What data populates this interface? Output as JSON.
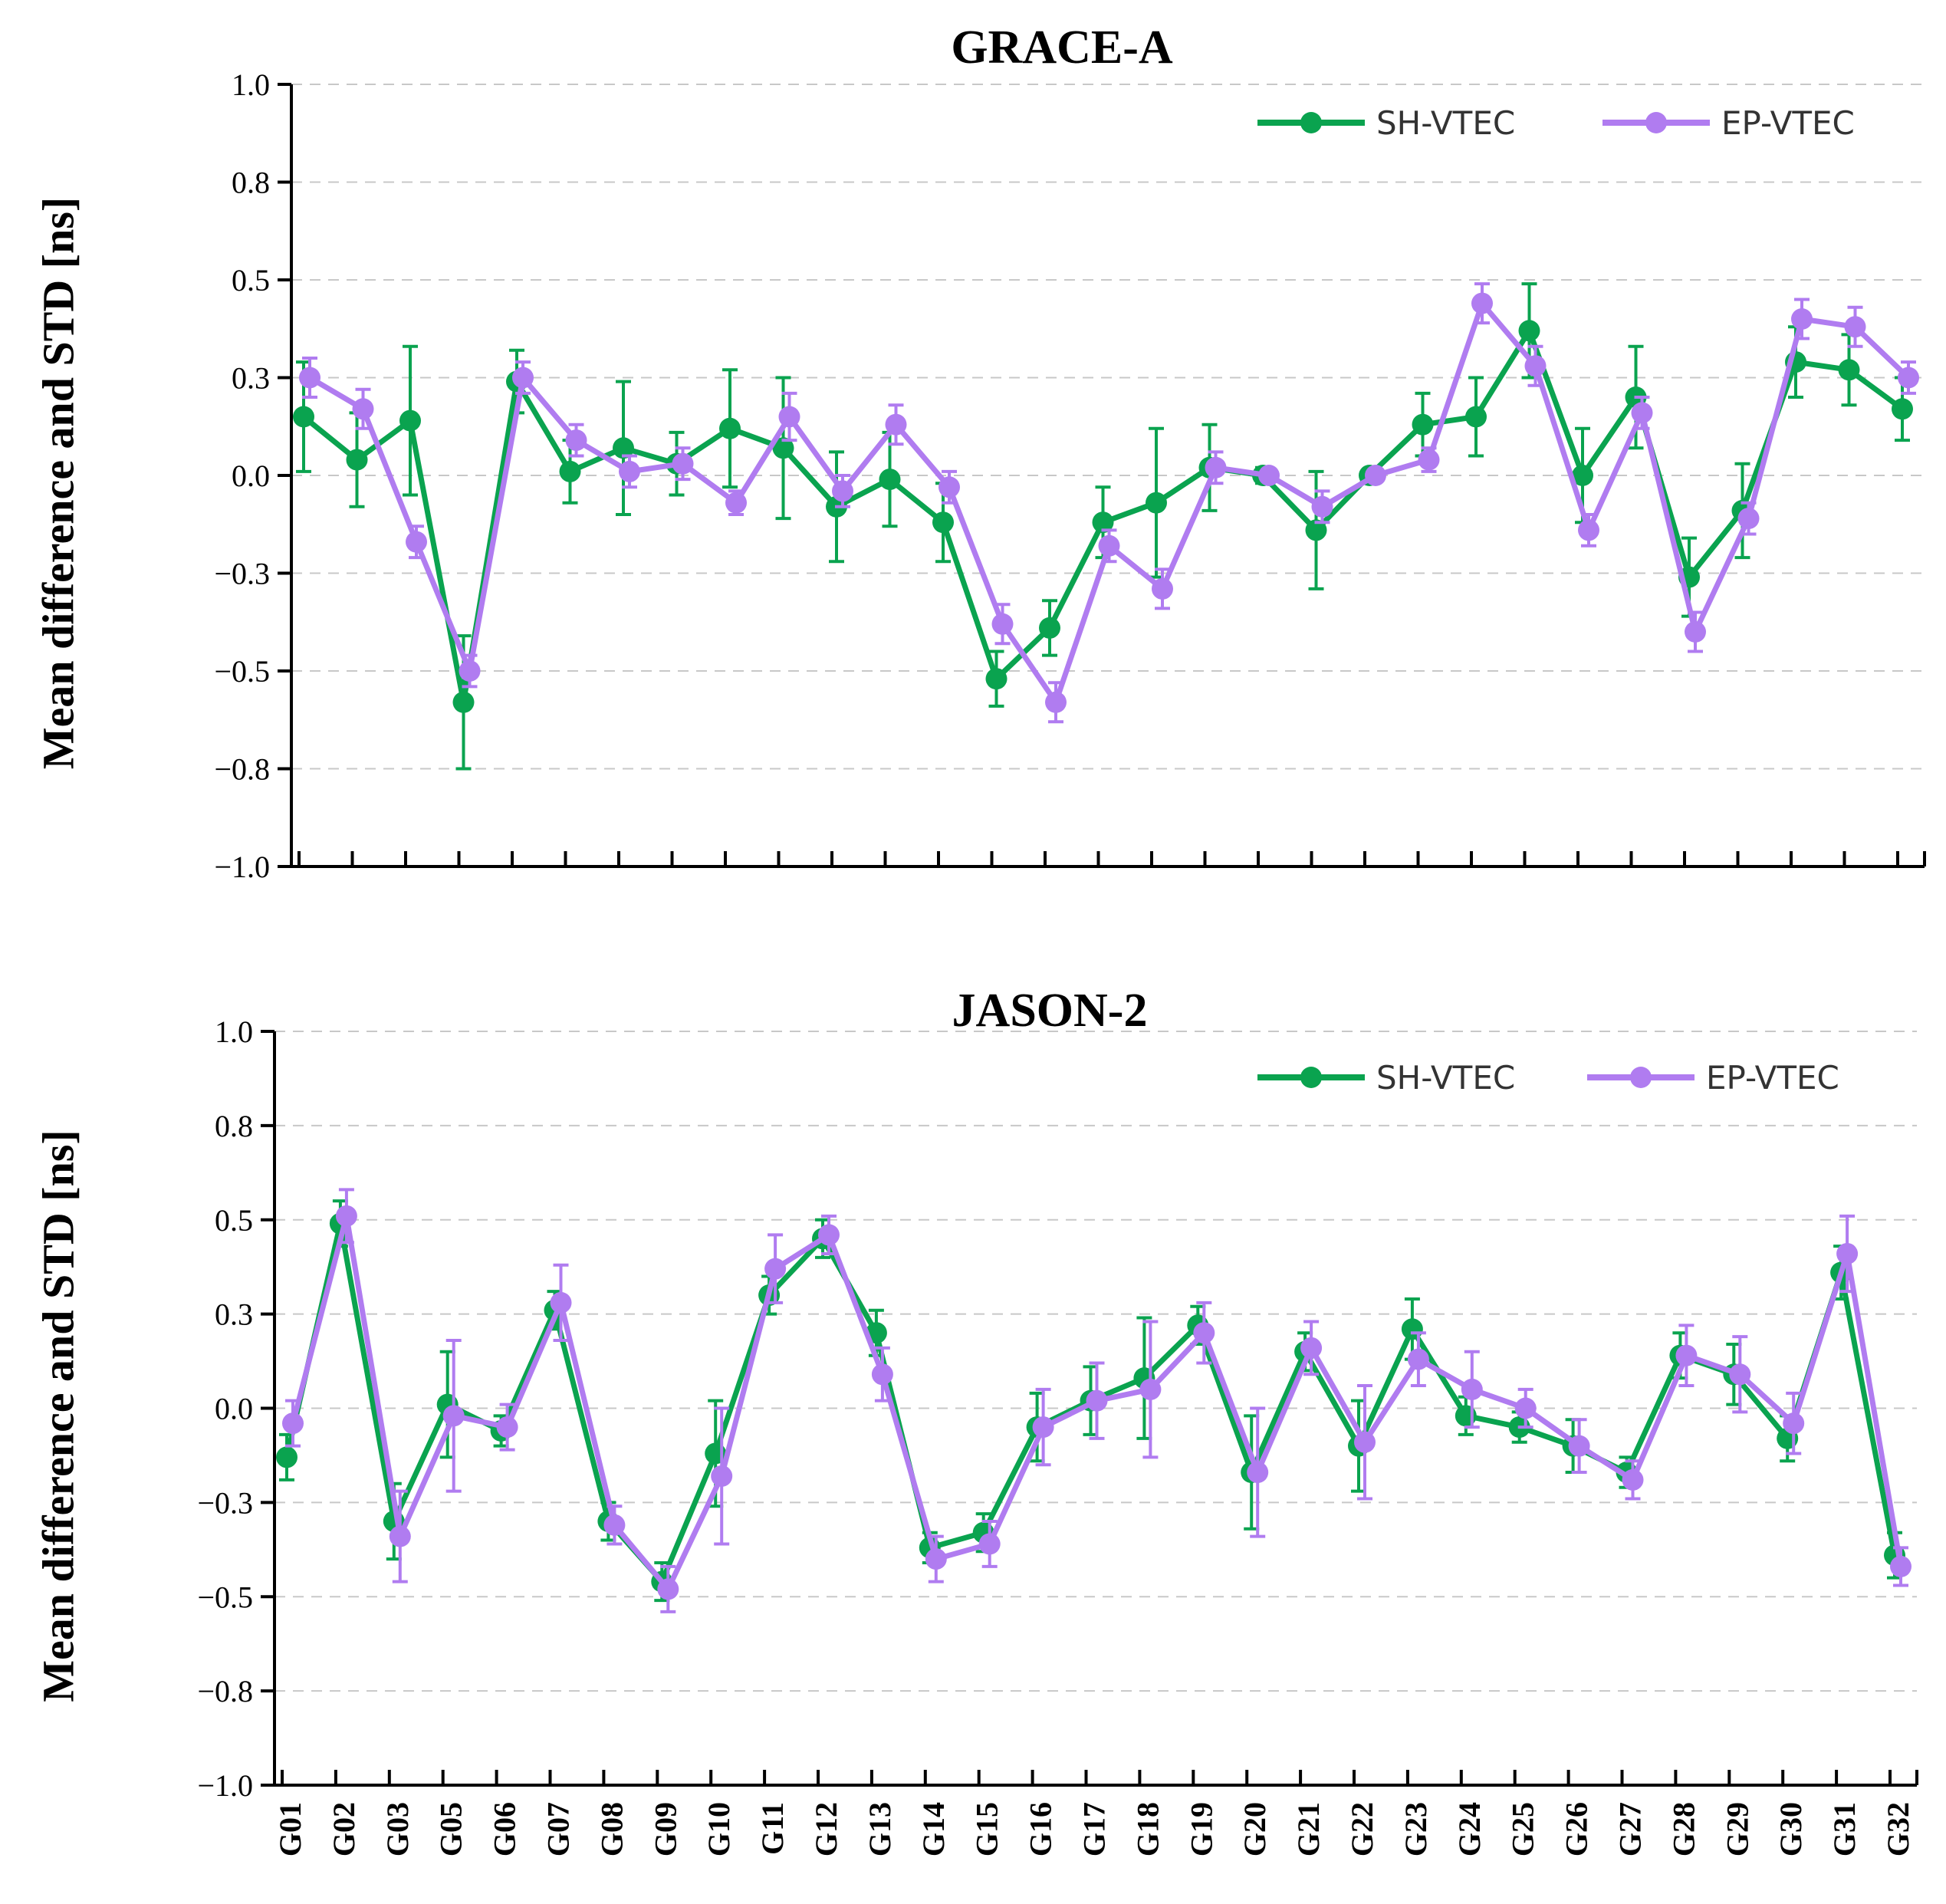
{
  "chart_data": [
    {
      "type": "line",
      "title": "GRACE-A",
      "ylabel": "Mean difference and STD [ns]",
      "xlabel": "",
      "ylim": [
        -1.0,
        1.0
      ],
      "yticks": [
        "1.0",
        "0.8",
        "0.5",
        "0.3",
        "0.0",
        "−0.3",
        "−0.5",
        "−0.8",
        "−1.0"
      ],
      "grid": "horizontal-dashed",
      "legend_position": "top-right",
      "categories": [
        "G01",
        "G02",
        "G03",
        "G05",
        "G06",
        "G07",
        "G08",
        "G09",
        "G10",
        "G11",
        "G12",
        "G13",
        "G14",
        "G15",
        "G16",
        "G17",
        "G18",
        "G19",
        "G20",
        "G21",
        "G22",
        "G23",
        "G24",
        "G25",
        "G26",
        "G27",
        "G28",
        "G29",
        "G30",
        "G31",
        "G32"
      ],
      "series": [
        {
          "name": "SH-VTEC",
          "color": "#0aa34f",
          "values": [
            0.15,
            0.04,
            0.14,
            -0.58,
            0.24,
            0.01,
            0.07,
            0.03,
            0.12,
            0.07,
            -0.08,
            -0.01,
            -0.12,
            -0.52,
            -0.39,
            -0.12,
            -0.07,
            0.02,
            0.0,
            -0.14,
            0.0,
            0.13,
            0.15,
            0.37,
            0.0,
            0.2,
            -0.26,
            -0.09,
            0.29,
            0.27,
            0.17
          ],
          "std": [
            0.14,
            0.12,
            0.19,
            0.17,
            0.08,
            0.08,
            0.17,
            0.08,
            0.15,
            0.18,
            0.14,
            0.12,
            0.1,
            0.07,
            0.07,
            0.09,
            0.19,
            0.11,
            0.02,
            0.15,
            0.01,
            0.08,
            0.1,
            0.12,
            0.12,
            0.13,
            0.1,
            0.12,
            0.09,
            0.09,
            0.08
          ]
        },
        {
          "name": "EP-VTEC",
          "color": "#b07cf0",
          "values": [
            0.25,
            0.17,
            -0.17,
            -0.5,
            0.25,
            0.09,
            0.01,
            0.03,
            -0.07,
            0.15,
            -0.04,
            0.13,
            -0.03,
            -0.38,
            -0.58,
            -0.18,
            -0.29,
            0.02,
            0.0,
            -0.08,
            0.0,
            0.04,
            0.44,
            0.28,
            -0.14,
            0.16,
            -0.4,
            -0.11,
            0.4,
            0.38,
            0.25
          ],
          "std": [
            0.05,
            0.05,
            0.04,
            0.04,
            0.04,
            0.04,
            0.04,
            0.04,
            0.03,
            0.06,
            0.04,
            0.05,
            0.04,
            0.05,
            0.05,
            0.04,
            0.05,
            0.04,
            0.01,
            0.04,
            0.01,
            0.03,
            0.05,
            0.05,
            0.04,
            0.04,
            0.05,
            0.04,
            0.05,
            0.05,
            0.04
          ]
        }
      ]
    },
    {
      "type": "line",
      "title": "JASON-2",
      "ylabel": "Mean difference and STD [ns]",
      "xlabel": "",
      "ylim": [
        -1.0,
        1.0
      ],
      "yticks": [
        "1.0",
        "0.8",
        "0.5",
        "0.3",
        "0.0",
        "−0.3",
        "−0.5",
        "−0.8",
        "−1.0"
      ],
      "grid": "horizontal-dashed",
      "legend_position": "top-right",
      "categories": [
        "G01",
        "G02",
        "G03",
        "G05",
        "G06",
        "G07",
        "G08",
        "G09",
        "G10",
        "G11",
        "G12",
        "G13",
        "G14",
        "G15",
        "G16",
        "G17",
        "G18",
        "G19",
        "G20",
        "G21",
        "G22",
        "G23",
        "G24",
        "G25",
        "G26",
        "G27",
        "G28",
        "G29",
        "G30",
        "G31",
        "G32"
      ],
      "series": [
        {
          "name": "SH-VTEC",
          "color": "#0aa34f",
          "values": [
            -0.13,
            0.49,
            -0.3,
            0.01,
            -0.06,
            0.26,
            -0.3,
            -0.46,
            -0.12,
            0.3,
            0.45,
            0.2,
            -0.37,
            -0.33,
            -0.05,
            0.02,
            0.08,
            0.22,
            -0.17,
            0.15,
            -0.1,
            0.21,
            -0.02,
            -0.05,
            -0.1,
            -0.17,
            0.14,
            0.09,
            -0.08,
            0.36,
            -0.39
          ],
          "std": [
            0.06,
            0.06,
            0.1,
            0.14,
            0.04,
            0.05,
            0.05,
            0.05,
            0.14,
            0.05,
            0.05,
            0.06,
            0.04,
            0.05,
            0.09,
            0.09,
            0.16,
            0.05,
            0.15,
            0.05,
            0.12,
            0.08,
            0.05,
            0.04,
            0.07,
            0.04,
            0.06,
            0.08,
            0.06,
            0.07,
            0.06
          ]
        },
        {
          "name": "EP-VTEC",
          "color": "#b07cf0",
          "values": [
            -0.04,
            0.51,
            -0.34,
            -0.02,
            -0.05,
            0.28,
            -0.31,
            -0.48,
            -0.18,
            0.37,
            0.46,
            0.09,
            -0.4,
            -0.36,
            -0.05,
            0.02,
            0.05,
            0.2,
            -0.17,
            0.16,
            -0.09,
            0.13,
            0.05,
            0.0,
            -0.1,
            -0.19,
            0.14,
            0.09,
            -0.04,
            0.41,
            -0.42
          ],
          "std": [
            0.06,
            0.07,
            0.12,
            0.2,
            0.06,
            0.1,
            0.05,
            0.06,
            0.18,
            0.09,
            0.05,
            0.07,
            0.06,
            0.06,
            0.1,
            0.1,
            0.18,
            0.08,
            0.17,
            0.07,
            0.15,
            0.07,
            0.1,
            0.05,
            0.07,
            0.05,
            0.08,
            0.1,
            0.08,
            0.1,
            0.05
          ]
        }
      ]
    }
  ]
}
